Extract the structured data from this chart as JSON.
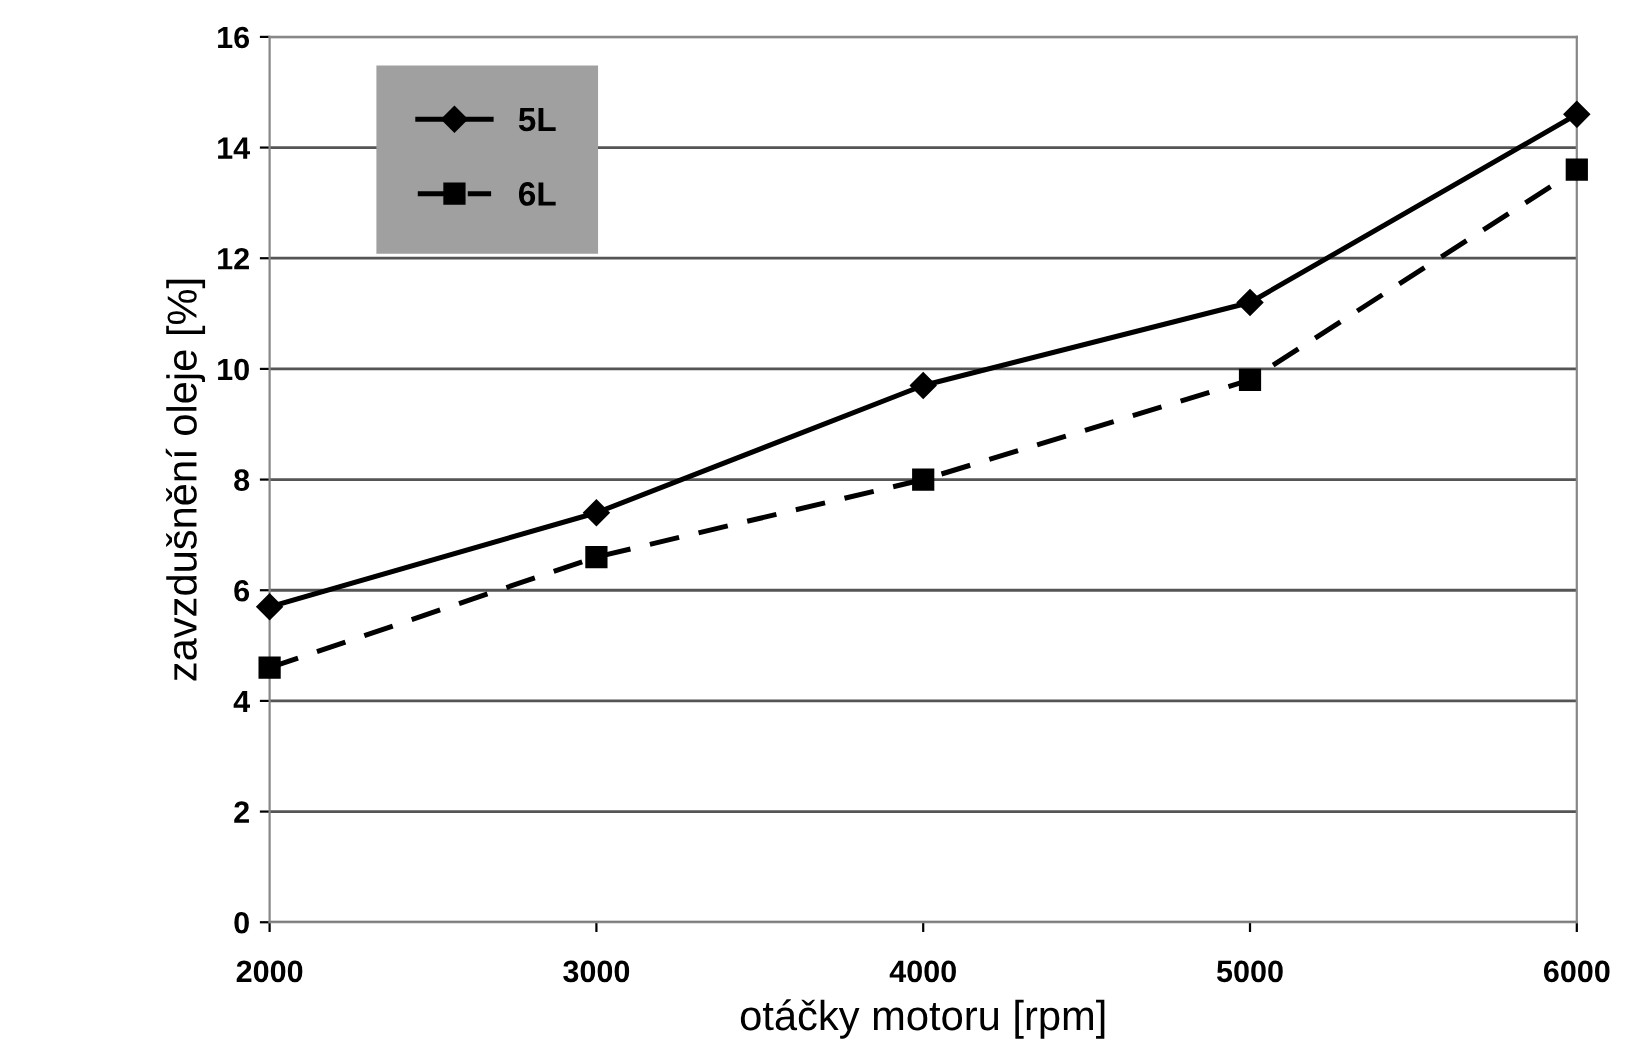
{
  "chart_data": {
    "type": "line",
    "xlabel": "otáčky motoru [rpm]",
    "ylabel": "zavzdušnění oleje [%]",
    "x": [
      2000,
      3000,
      4000,
      5000,
      6000
    ],
    "series": [
      {
        "name": "5L",
        "color": "#000000",
        "values": [
          5.7,
          7.4,
          9.7,
          11.2,
          14.6
        ],
        "marker": "diamond",
        "line_style": "solid"
      },
      {
        "name": "6L",
        "color": "#000000",
        "values": [
          4.6,
          6.6,
          8.0,
          9.8,
          13.6
        ],
        "marker": "square",
        "line_style": "dashed"
      }
    ],
    "xlim": [
      2000,
      6000
    ],
    "xticks": [
      2000,
      3000,
      4000,
      5000,
      6000
    ],
    "ylim": [
      0,
      16
    ],
    "yticks": [
      0,
      2,
      4,
      6,
      8,
      10,
      12,
      14,
      16
    ],
    "grid": "y",
    "legend": "top left"
  }
}
